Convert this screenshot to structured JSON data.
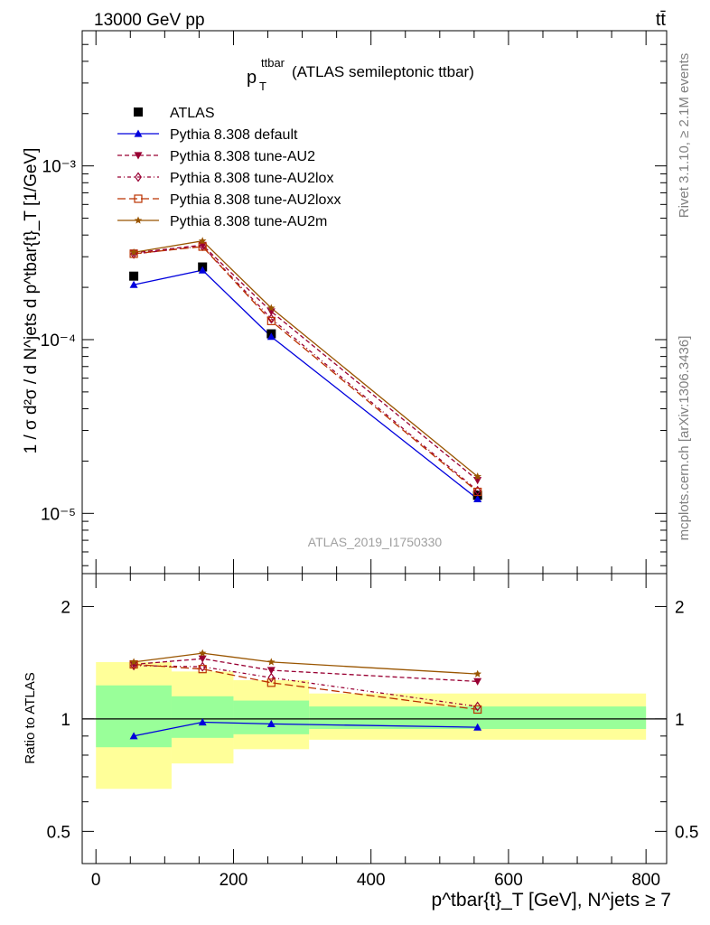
{
  "header": {
    "left": "13000 GeV pp",
    "right": "tt̄"
  },
  "side_text": {
    "rivet": "Rivet 3.1.10, ≥ 2.1M events",
    "mcplots": "mcplots.cern.ch [arXiv:1306.3436]"
  },
  "chart_data": [
    {
      "type": "line",
      "panel": "main",
      "title": "(ATLAS semileptonic ttbar)",
      "title_symbol": "p",
      "title_symbol_sub": "T",
      "title_symbol_sup": "ttbar",
      "watermark": "ATLAS_2019_I1750330",
      "ylabel": "1 / σ d²σ / d N^jets d p^tbar{t}_T [1/GeV]",
      "yscale": "log",
      "ylim": [
        4.5e-06,
        0.006
      ],
      "xlim": [
        -20,
        830
      ],
      "x": [
        55,
        155,
        255,
        555
      ],
      "x_bin_edges": [
        0,
        110,
        200,
        310,
        800
      ],
      "ytick_labels": [
        "10⁻⁵",
        "10⁻⁴",
        "10⁻³"
      ],
      "legend_position": "top-left",
      "series": [
        {
          "name": "ATLAS",
          "color": "#000000",
          "marker": "square",
          "values": [
            0.000232,
            0.000262,
            0.000108,
            1.27e-05
          ]
        },
        {
          "name": "Pythia 8.308 default",
          "color": "#0000dd",
          "marker": "triangle-up",
          "line": "solid",
          "values": [
            0.000207,
            0.000251,
            0.000104,
            1.21e-05
          ]
        },
        {
          "name": "Pythia 8.308 tune-AU2",
          "color": "#990033",
          "marker": "triangle-down",
          "line": "dashed",
          "values": [
            0.000316,
            0.00035,
            0.000145,
            1.55e-05
          ]
        },
        {
          "name": "Pythia 8.308 tune-AU2lox",
          "color": "#990033",
          "marker": "diamond",
          "line": "dashdot",
          "values": [
            0.000311,
            0.000345,
            0.000132,
            1.35e-05
          ]
        },
        {
          "name": "Pythia 8.308 tune-AU2loxx",
          "color": "#bb3300",
          "marker": "square-open",
          "line": "longdash",
          "values": [
            0.000312,
            0.000343,
            0.000128,
            1.33e-05
          ]
        },
        {
          "name": "Pythia 8.308 tune-AU2m",
          "color": "#995500",
          "marker": "star",
          "line": "solid",
          "values": [
            0.000318,
            0.00037,
            0.000152,
            1.63e-05
          ]
        }
      ]
    },
    {
      "type": "line",
      "panel": "ratio",
      "ylabel": "Ratio to ATLAS",
      "yscale": "log",
      "ylim": [
        0.41,
        2.45
      ],
      "xlim": [
        -20,
        830
      ],
      "xlabel": "p^tbar{t}_T [GeV], N^jets ≥ 7",
      "xticks": [
        0,
        200,
        400,
        600,
        800
      ],
      "yticks": [
        0.5,
        1,
        2
      ],
      "x": [
        55,
        155,
        255,
        555
      ],
      "band_stat": [
        [
          0.84,
          1.23
        ],
        [
          0.89,
          1.15
        ],
        [
          0.91,
          1.12
        ],
        [
          0.94,
          1.08
        ]
      ],
      "band_total": [
        [
          0.65,
          1.42
        ],
        [
          0.76,
          1.34
        ],
        [
          0.83,
          1.27
        ],
        [
          0.88,
          1.17
        ]
      ],
      "series": [
        {
          "name": "Pythia 8.308 default",
          "values": [
            0.9,
            0.98,
            0.97,
            0.95
          ]
        },
        {
          "name": "Pythia 8.308 tune-AU2",
          "values": [
            1.4,
            1.45,
            1.35,
            1.26
          ]
        },
        {
          "name": "Pythia 8.308 tune-AU2lox",
          "values": [
            1.39,
            1.38,
            1.29,
            1.08
          ]
        },
        {
          "name": "Pythia 8.308 tune-AU2loxx",
          "values": [
            1.4,
            1.36,
            1.25,
            1.06
          ]
        },
        {
          "name": "Pythia 8.308 tune-AU2m",
          "values": [
            1.42,
            1.5,
            1.42,
            1.32
          ]
        }
      ]
    }
  ]
}
